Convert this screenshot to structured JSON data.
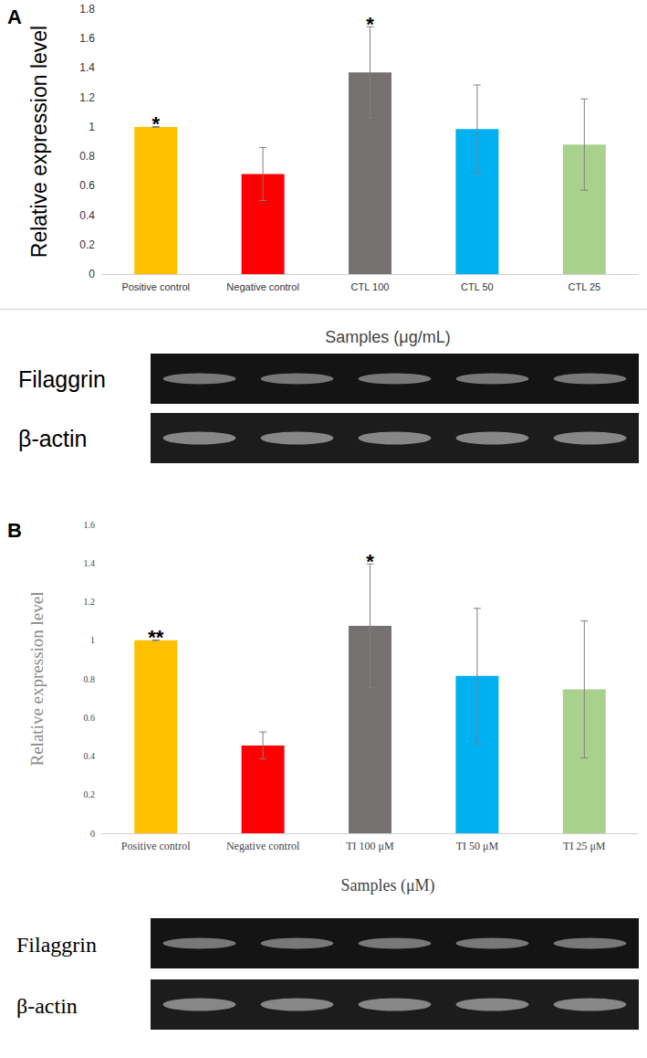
{
  "chart_data": [
    {
      "type": "bar",
      "panel": "A",
      "y_label": "Relative expression level",
      "categories": [
        "Positive control",
        "Negative control",
        "CTL 100",
        "CTL 50",
        "CTL 25"
      ],
      "values": [
        1.0,
        0.68,
        1.37,
        0.985,
        0.88
      ],
      "errors": [
        0.003,
        0.18,
        0.31,
        0.3,
        0.31
      ],
      "colors": [
        "#ffc000",
        "#ff0000",
        "#767171",
        "#00b0f0",
        "#a9d18e"
      ],
      "ylim": [
        0,
        1.8
      ],
      "yticks": [
        0,
        0.2,
        0.4,
        0.6,
        0.8,
        1,
        1.2,
        1.4,
        1.6,
        1.8
      ],
      "grid": false,
      "annotations": [
        {
          "category": "Positive control",
          "text": "*"
        },
        {
          "category": "CTL 100",
          "text": "*"
        }
      ],
      "gel": {
        "title": "Samples (μg/mL)",
        "rows": [
          "Filaggrin",
          "β-actin"
        ]
      }
    },
    {
      "type": "bar",
      "panel": "B",
      "y_label": "Relative expression level",
      "categories": [
        "Positive control",
        "Negative control",
        "TI 100 μM",
        "TI 50 μM",
        "TI 25 μM"
      ],
      "values": [
        1.0,
        0.455,
        1.075,
        0.815,
        0.745
      ],
      "errors": [
        0.002,
        0.07,
        0.32,
        0.35,
        0.355
      ],
      "colors": [
        "#ffc000",
        "#ff0000",
        "#767171",
        "#00b0f0",
        "#a9d18e"
      ],
      "ylim": [
        0,
        1.6
      ],
      "yticks": [
        0,
        0.2,
        0.4,
        0.6,
        0.8,
        1,
        1.2,
        1.4,
        1.6
      ],
      "grid": false,
      "annotations": [
        {
          "category": "Positive control",
          "text": "**"
        },
        {
          "category": "TI 100 μM",
          "text": "*"
        }
      ],
      "gel": {
        "title": "Samples (μM)",
        "rows": [
          "Filaggrin",
          "β-actin"
        ]
      }
    }
  ]
}
